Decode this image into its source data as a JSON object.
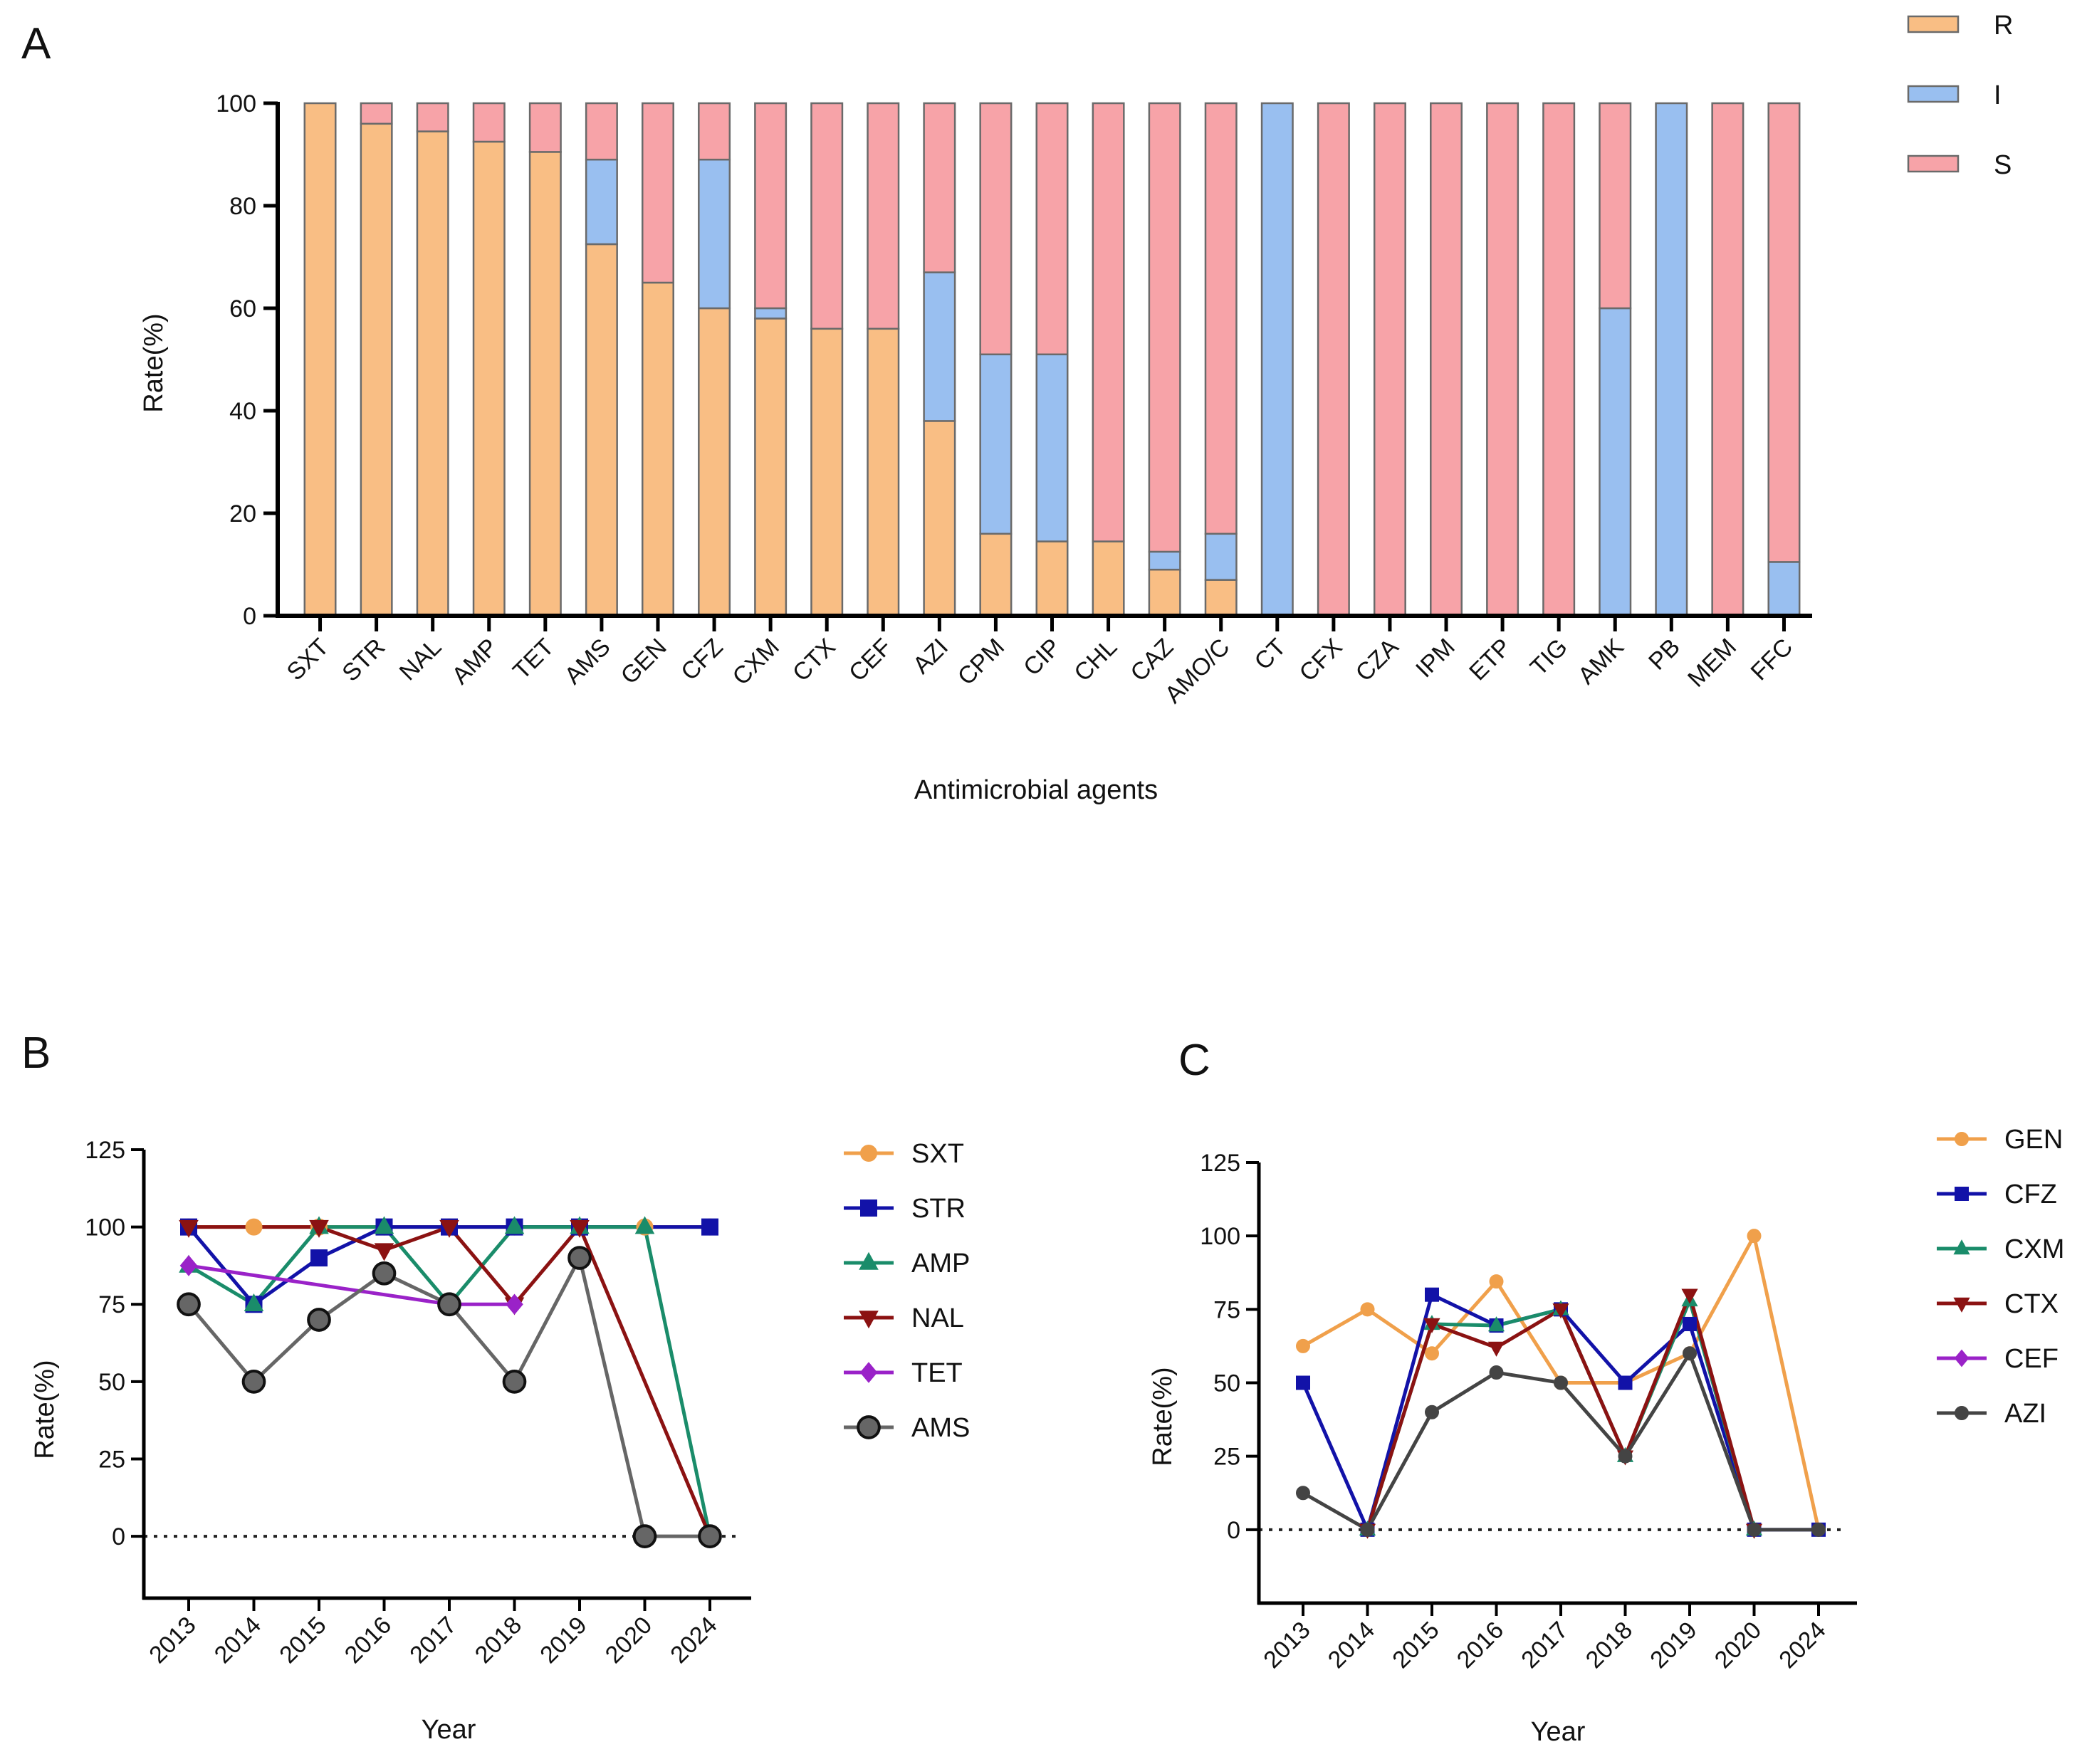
{
  "chart_data": [
    {
      "panel": "A",
      "type": "bar",
      "stacked": true,
      "xlabel": "Antimicrobial agents",
      "ylabel": "Rate(%)",
      "ylim": [
        0,
        100
      ],
      "yticks": [
        0,
        20,
        40,
        60,
        80,
        100
      ],
      "categories": [
        "SXT",
        "STR",
        "NAL",
        "AMP",
        "TET",
        "AMS",
        "GEN",
        "CFZ",
        "CXM",
        "CTX",
        "CEF",
        "AZI",
        "CPM",
        "CIP",
        "CHL",
        "CAZ",
        "AMO/C",
        "CT",
        "CFX",
        "CZA",
        "IPM",
        "ETP",
        "TIG",
        "AMK",
        "PB",
        "MEM",
        "FFC"
      ],
      "series": [
        {
          "name": "R",
          "color": "#F9BE84",
          "values": [
            100,
            96,
            94.5,
            92.5,
            90.5,
            72.5,
            65,
            60,
            58,
            56,
            56,
            38,
            16,
            14.5,
            14.5,
            9,
            7,
            0,
            0,
            0,
            0,
            0,
            0,
            0,
            0,
            0,
            0
          ]
        },
        {
          "name": "I",
          "color": "#99BFF0",
          "values": [
            0,
            0,
            0,
            0,
            0,
            16.5,
            0,
            29,
            2,
            0,
            0,
            29,
            35,
            36.5,
            0,
            3.5,
            9,
            100,
            0,
            0,
            0,
            0,
            0,
            60,
            100,
            0,
            10.5
          ]
        },
        {
          "name": "S",
          "color": "#F7A3A8",
          "values": [
            0,
            4,
            5.5,
            7.5,
            9.5,
            11,
            35,
            11,
            40,
            44,
            44,
            33,
            49,
            49,
            85.5,
            87.5,
            84,
            0,
            100,
            100,
            100,
            100,
            100,
            40,
            0,
            100,
            89.5
          ]
        }
      ],
      "legend_position": "top-right"
    },
    {
      "panel": "B",
      "type": "line",
      "xlabel": "Year",
      "ylabel": "Rate(%)",
      "ylim": [
        -20,
        125
      ],
      "yticks": [
        0,
        25,
        50,
        75,
        100,
        125
      ],
      "x": [
        "2013",
        "2014",
        "2015",
        "2016",
        "2017",
        "2018",
        "2019",
        "2020",
        "2024"
      ],
      "zero_line": "dotted",
      "legend_position": "right",
      "series": [
        {
          "name": "SXT",
          "color": "#F0A04B",
          "marker": "circle",
          "values": [
            100,
            100,
            100,
            100,
            100,
            100,
            100,
            100,
            100
          ]
        },
        {
          "name": "STR",
          "color": "#1212A8",
          "marker": "square",
          "values": [
            100,
            75,
            90,
            100,
            100,
            100,
            100,
            null,
            100
          ]
        },
        {
          "name": "AMP",
          "color": "#1A8C6A",
          "marker": "triangle-up",
          "values": [
            87.5,
            75,
            100,
            100,
            75,
            100,
            100,
            100,
            0
          ]
        },
        {
          "name": "NAL",
          "color": "#8B1212",
          "marker": "triangle-down",
          "values": [
            100,
            null,
            100,
            92.5,
            100,
            75,
            100,
            null,
            0
          ]
        },
        {
          "name": "TET",
          "color": "#9A22C8",
          "marker": "diamond",
          "values": [
            87.5,
            null,
            null,
            null,
            75,
            75,
            null,
            null,
            null
          ]
        },
        {
          "name": "AMS",
          "color": "#666666",
          "marker": "big-circle",
          "values": [
            75,
            50,
            70,
            85,
            75,
            50,
            90,
            0,
            0
          ]
        }
      ]
    },
    {
      "panel": "C",
      "type": "line",
      "xlabel": "Year",
      "ylabel": "Rate(%)",
      "ylim": [
        -25,
        125
      ],
      "yticks": [
        0,
        25,
        50,
        75,
        100,
        125
      ],
      "x": [
        "2013",
        "2014",
        "2015",
        "2016",
        "2017",
        "2018",
        "2019",
        "2020",
        "2024"
      ],
      "zero_line": "dotted",
      "legend_position": "right",
      "series": [
        {
          "name": "GEN",
          "color": "#F0A04B",
          "marker": "circle",
          "values": [
            62.5,
            75,
            60,
            84.5,
            50,
            50,
            60,
            100,
            0
          ]
        },
        {
          "name": "CFZ",
          "color": "#1212A8",
          "marker": "square",
          "values": [
            50,
            0,
            80,
            69.5,
            75,
            50,
            70,
            0,
            0
          ]
        },
        {
          "name": "CXM",
          "color": "#1A8C6A",
          "marker": "triangle-up",
          "values": [
            null,
            0,
            70,
            69.5,
            75,
            25,
            78,
            0,
            null
          ]
        },
        {
          "name": "CTX",
          "color": "#8B1212",
          "marker": "triangle-down",
          "values": [
            null,
            0,
            70,
            62,
            75,
            25,
            80,
            0,
            null
          ]
        },
        {
          "name": "CEF",
          "color": "#9A22C8",
          "marker": "diamond",
          "values": [
            null,
            null,
            null,
            null,
            null,
            null,
            null,
            null,
            null
          ]
        },
        {
          "name": "AZI",
          "color": "#444444",
          "marker": "circle",
          "values": [
            12.5,
            0,
            40,
            53.5,
            50,
            25,
            60,
            0,
            0
          ]
        }
      ]
    }
  ]
}
